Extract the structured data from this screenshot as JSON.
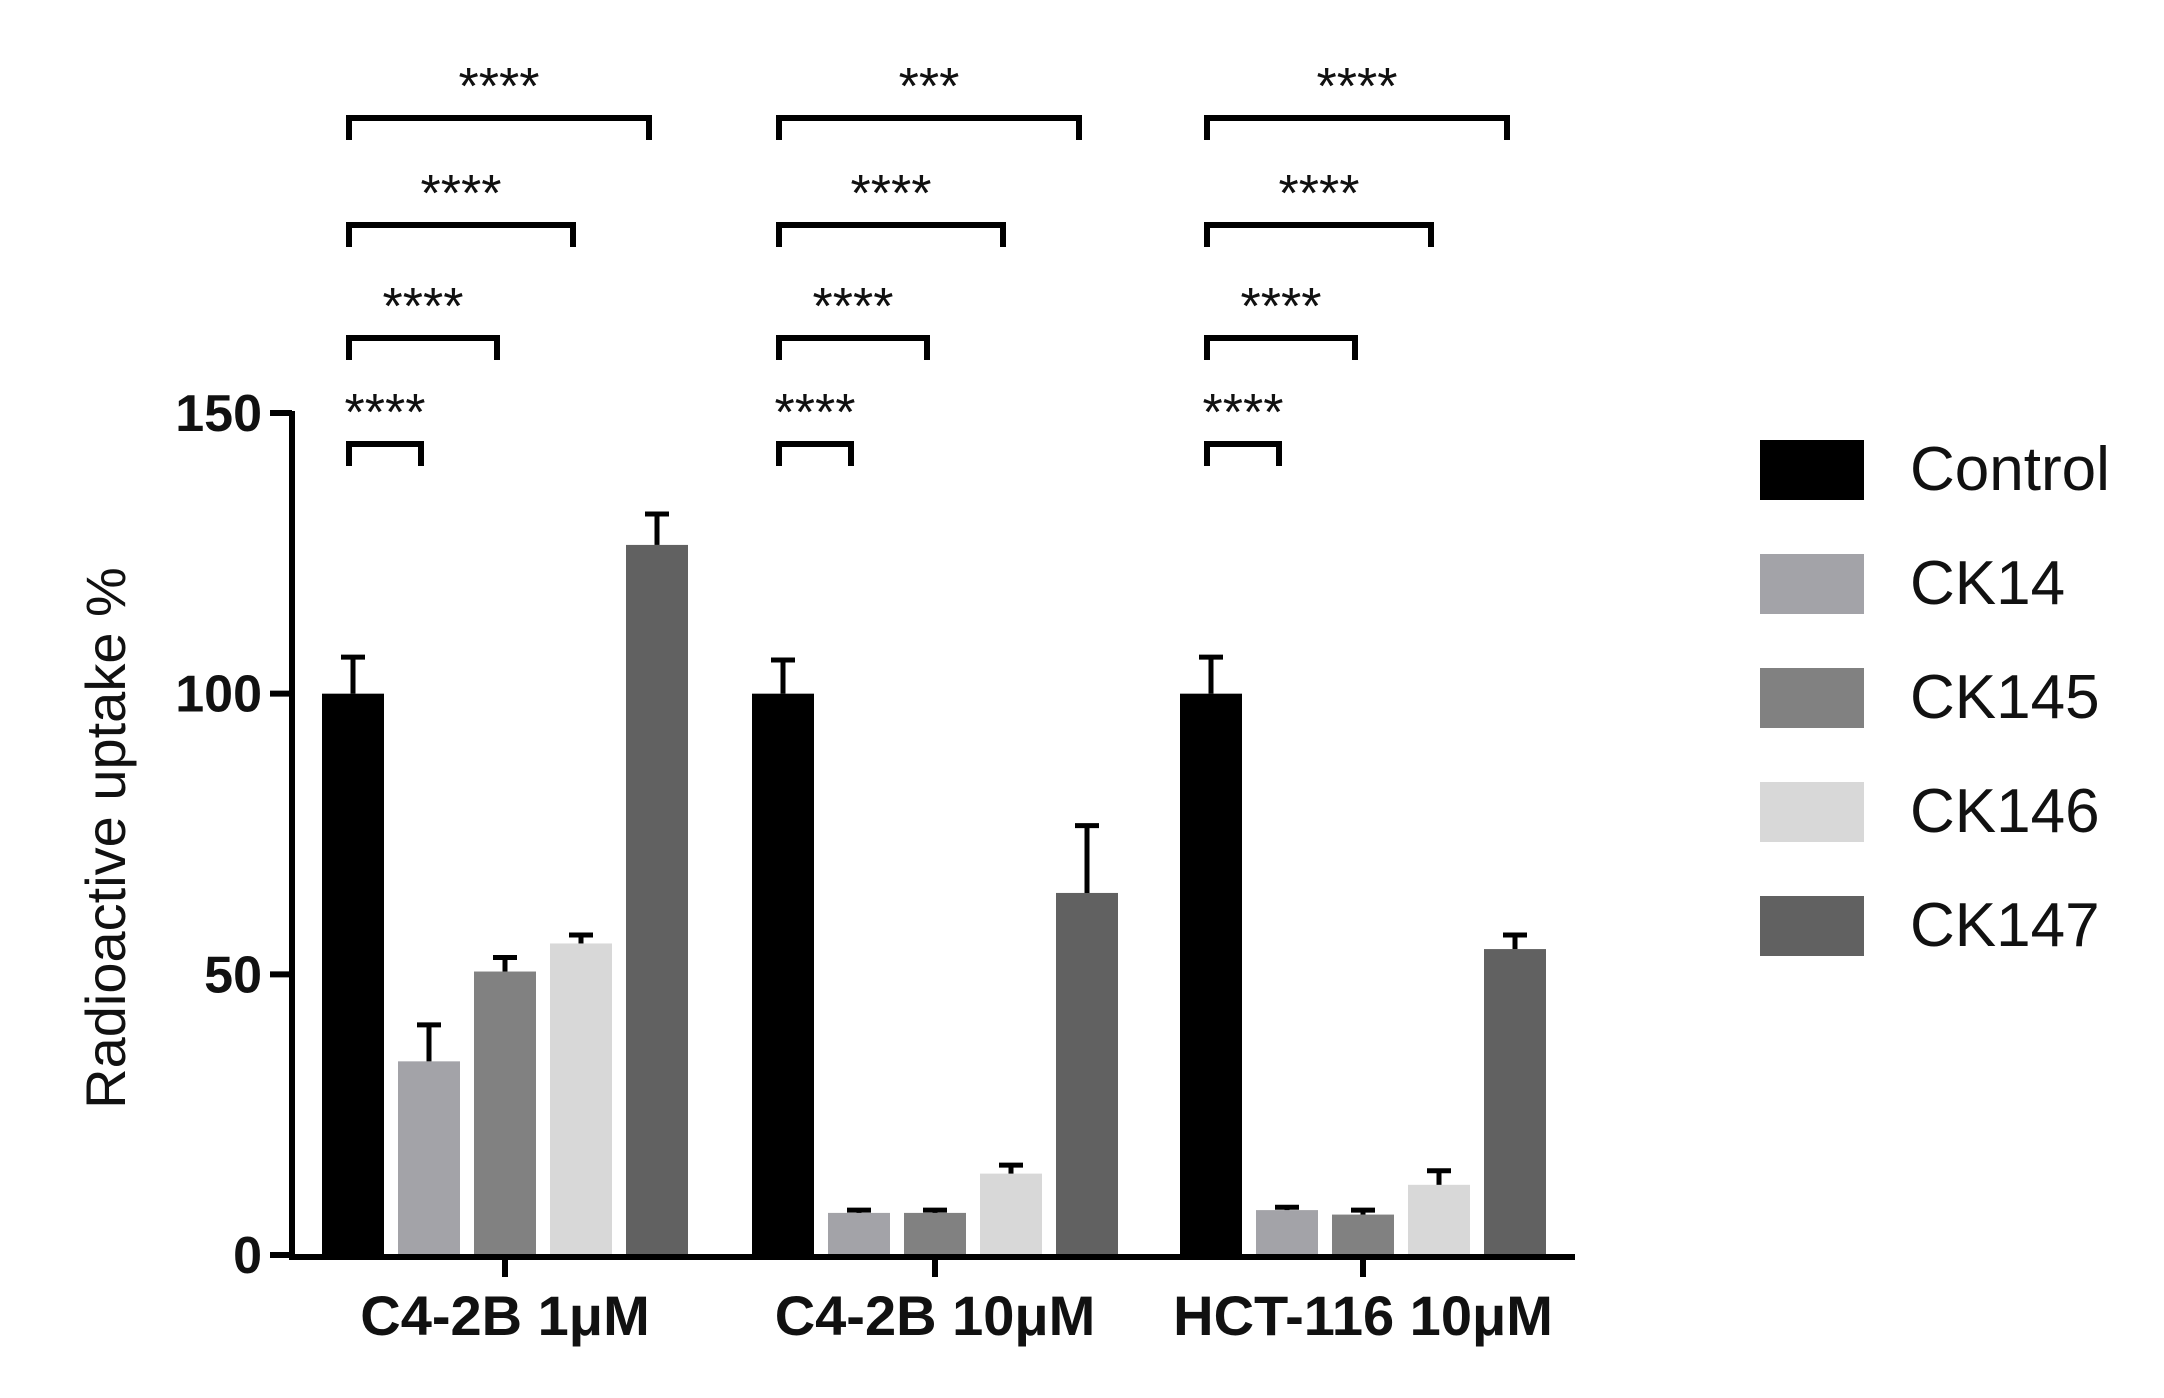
{
  "chart_data": {
    "type": "bar",
    "title": "",
    "xlabel": "",
    "ylabel": "Radioactive uptake %",
    "ylim": [
      0,
      150
    ],
    "yticks": [
      "0",
      "50",
      "100",
      "150"
    ],
    "categories": [
      "C4-2B 1μM",
      "C4-2B 10μM",
      "HCT-116 10μM"
    ],
    "legend_position": "right",
    "series": [
      {
        "name": "Control",
        "color": "#000000",
        "values": [
          100,
          100,
          100
        ],
        "errors": [
          6.5,
          6,
          6.5
        ]
      },
      {
        "name": "CK14",
        "color": "#a3a3a8",
        "values": [
          34.5,
          7.5,
          8
        ],
        "errors": [
          6.5,
          0.5,
          0.5
        ]
      },
      {
        "name": "CK145",
        "color": "#818181",
        "values": [
          50.5,
          7.5,
          7.2
        ],
        "errors": [
          2.5,
          0.5,
          0.8
        ]
      },
      {
        "name": "CK146",
        "color": "#d8d8d8",
        "values": [
          55.5,
          14.5,
          12.5
        ],
        "errors": [
          1.5,
          1.5,
          2.5
        ]
      },
      {
        "name": "CK147",
        "color": "#616161",
        "values": [
          126.5,
          64.5,
          54.5
        ],
        "errors": [
          5.5,
          12,
          2.5
        ]
      }
    ],
    "significance": [
      {
        "group": 0,
        "vs_series": 1,
        "label": "****"
      },
      {
        "group": 0,
        "vs_series": 2,
        "label": "****"
      },
      {
        "group": 0,
        "vs_series": 3,
        "label": "****"
      },
      {
        "group": 0,
        "vs_series": 4,
        "label": "****"
      },
      {
        "group": 1,
        "vs_series": 1,
        "label": "****"
      },
      {
        "group": 1,
        "vs_series": 2,
        "label": "****"
      },
      {
        "group": 1,
        "vs_series": 3,
        "label": "****"
      },
      {
        "group": 1,
        "vs_series": 4,
        "label": "***"
      },
      {
        "group": 2,
        "vs_series": 1,
        "label": "****"
      },
      {
        "group": 2,
        "vs_series": 2,
        "label": "****"
      },
      {
        "group": 2,
        "vs_series": 3,
        "label": "****"
      },
      {
        "group": 2,
        "vs_series": 4,
        "label": "****"
      }
    ]
  }
}
